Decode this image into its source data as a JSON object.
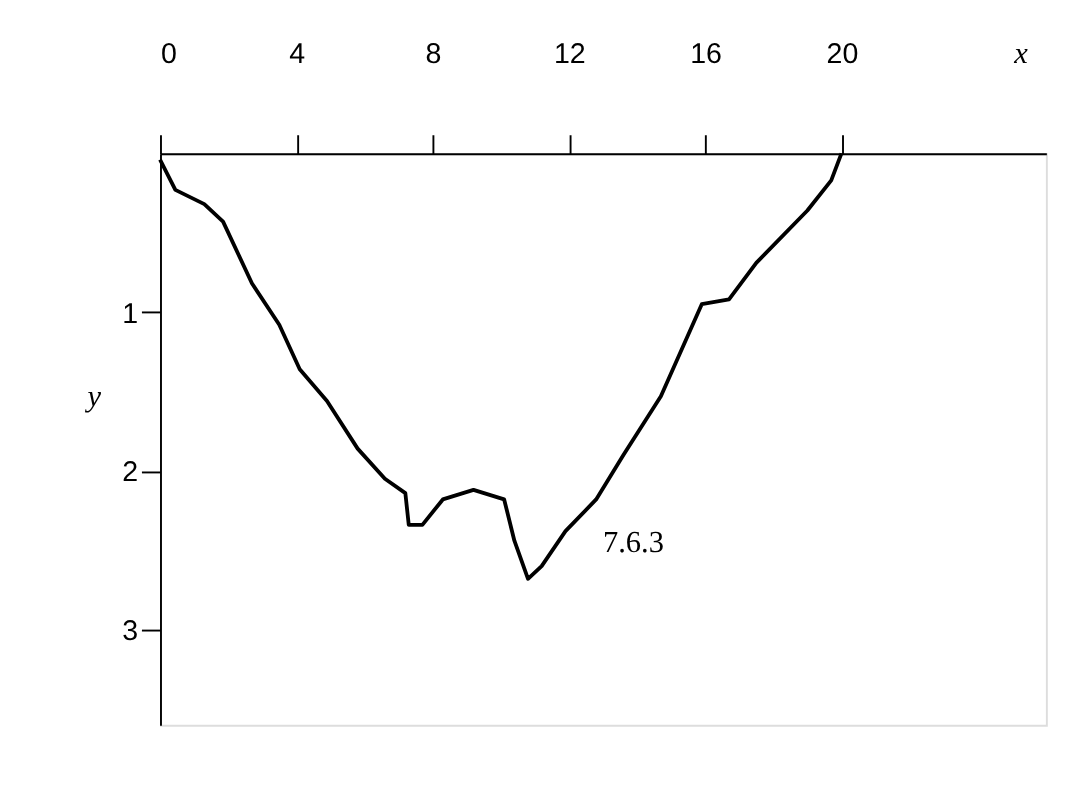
{
  "chart_data": {
    "type": "line",
    "xlabel": "x",
    "ylabel": "y",
    "x": [
      0,
      0.45,
      1.3,
      1.85,
      2.7,
      3.5,
      4.1,
      4.9,
      5.8,
      6.6,
      7.2,
      7.3,
      7.7,
      8.3,
      9.2,
      10.1,
      10.4,
      10.8,
      11.2,
      11.9,
      12.8,
      13.6,
      14.7,
      15.9,
      16.7,
      17.5,
      19.0,
      19.7,
      20
    ],
    "series": [
      {
        "color": "#000000",
        "values": [
          0.04,
          0.23,
          0.32,
          0.43,
          0.82,
          1.08,
          1.36,
          1.56,
          1.86,
          2.05,
          2.14,
          2.34,
          2.34,
          2.18,
          2.12,
          2.18,
          2.44,
          2.68,
          2.6,
          2.38,
          2.18,
          1.9,
          1.53,
          0.95,
          0.92,
          0.69,
          0.36,
          0.17,
          0
        ]
      }
    ],
    "xlim": [
      0,
      26
    ],
    "ylim": [
      3.6,
      0
    ],
    "xticks": [
      0,
      4,
      8,
      12,
      16,
      20
    ],
    "yticks": [
      1,
      2,
      3
    ],
    "grid": false,
    "marker": "none",
    "line_style": "solid",
    "annotations": [
      "7.6.3"
    ]
  }
}
